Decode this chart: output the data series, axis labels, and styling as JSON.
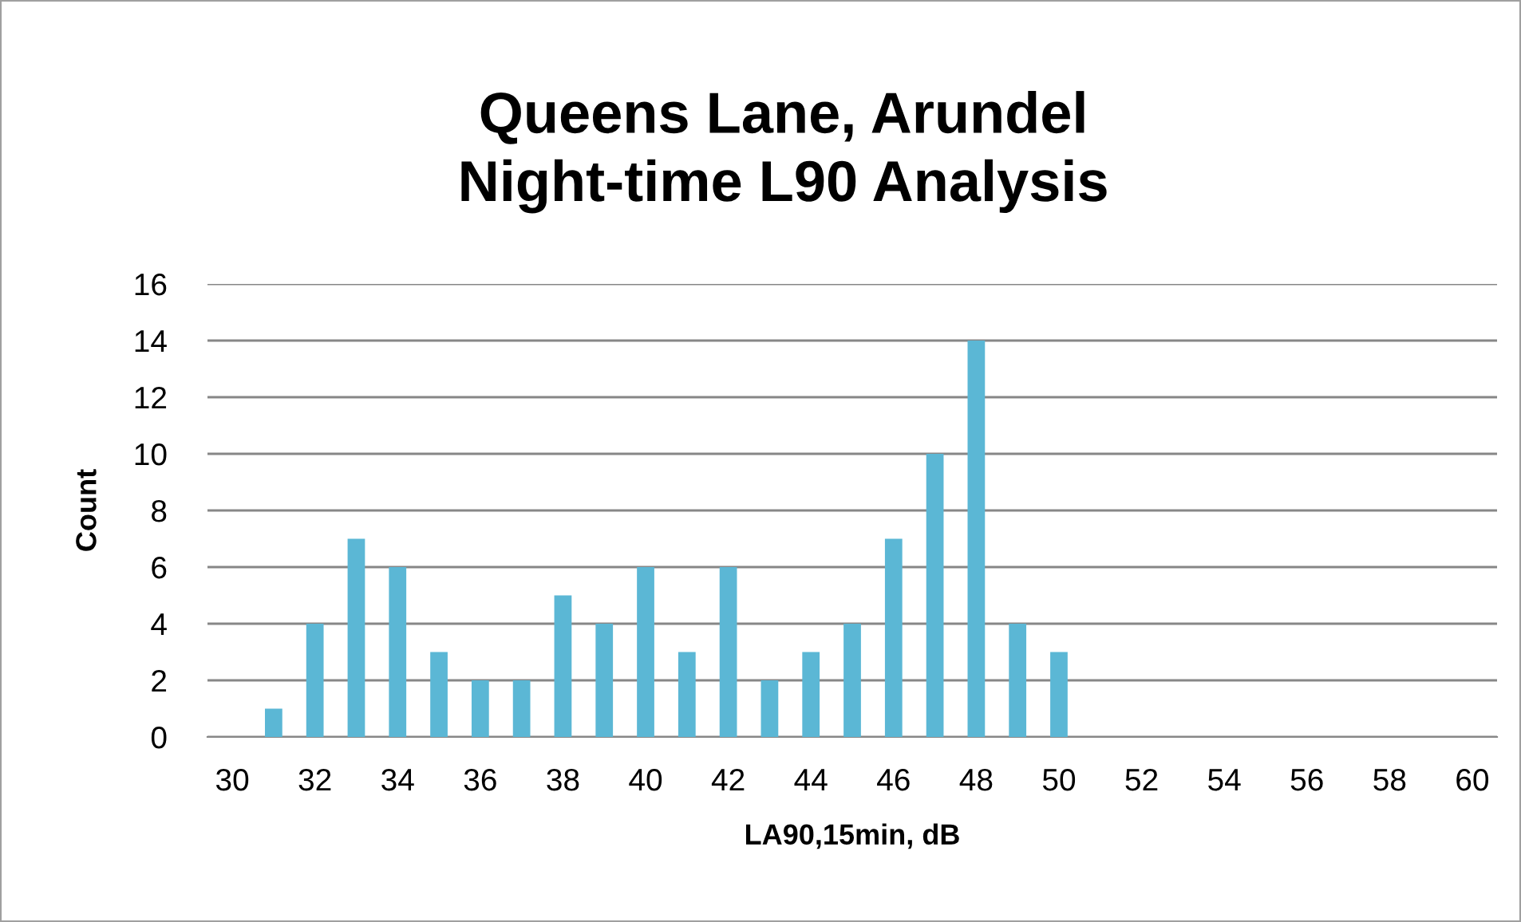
{
  "chart_data": {
    "type": "bar",
    "title": "Queens Lane, Arundel\nNight-time L90 Analysis",
    "xlabel": "LA90,15min, dB",
    "ylabel": "Count",
    "categories": [
      "30",
      null,
      "32",
      null,
      "34",
      null,
      "36",
      null,
      "38",
      null,
      "40",
      null,
      "42",
      null,
      "44",
      null,
      "46",
      null,
      "48",
      null,
      "50",
      null,
      "52",
      null,
      "54",
      null,
      "56",
      null,
      "58",
      null,
      "60"
    ],
    "values": [
      0,
      1,
      4,
      7,
      6,
      3,
      2,
      2,
      5,
      4,
      6,
      3,
      6,
      2,
      3,
      4,
      7,
      10,
      14,
      4,
      3,
      0,
      0,
      0,
      0,
      0,
      0,
      0,
      0,
      0,
      0
    ],
    "color": "#5bb7d5",
    "ylim": [
      0,
      16
    ],
    "yticks": [
      0,
      2,
      4,
      6,
      8,
      10,
      12,
      14,
      16
    ],
    "grid": "y",
    "legend": false
  }
}
